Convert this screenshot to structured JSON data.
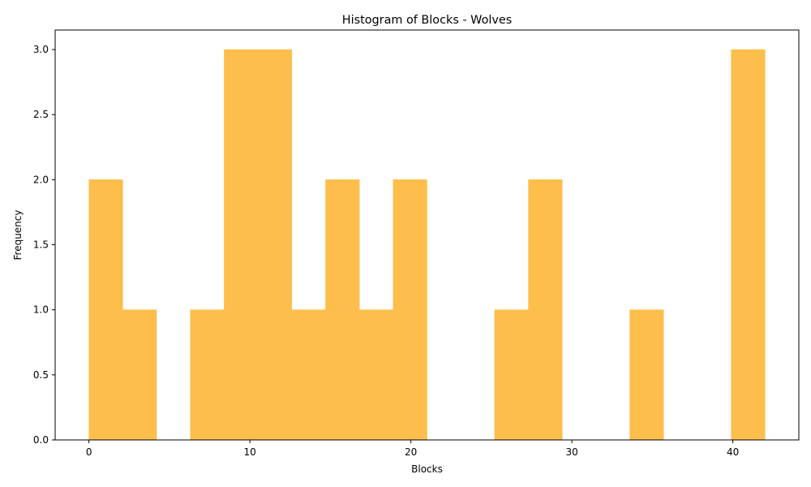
{
  "chart_data": {
    "type": "bar",
    "subtype": "histogram",
    "title": "Histogram of Blocks - Wolves",
    "xlabel": "Blocks",
    "ylabel": "Frequency",
    "bin_edges": [
      0,
      2.1,
      4.2,
      6.3,
      8.4,
      10.5,
      12.6,
      14.7,
      16.8,
      18.9,
      21.0,
      23.1,
      25.2,
      27.3,
      29.4,
      31.5,
      33.6,
      35.7,
      37.8,
      39.9,
      42.0
    ],
    "values": [
      2,
      1,
      0,
      1,
      3,
      3,
      1,
      2,
      1,
      2,
      0,
      0,
      1,
      2,
      0,
      0,
      1,
      0,
      0,
      3
    ],
    "xlim": [
      -2.1,
      44.1
    ],
    "ylim": [
      0,
      3.15
    ],
    "x_ticks": [
      0,
      10,
      20,
      30,
      40
    ],
    "x_tick_labels": [
      "0",
      "10",
      "20",
      "30",
      "40"
    ],
    "y_ticks": [
      0,
      0.5,
      1.0,
      1.5,
      2.0,
      2.5,
      3.0
    ],
    "y_tick_labels": [
      "0.0",
      "0.5",
      "1.0",
      "1.5",
      "2.0",
      "2.5",
      "3.0"
    ],
    "bar_color": "#fdbe4c",
    "bar_edge_color": "#fdbe4c",
    "grid": false,
    "legend": "none"
  }
}
